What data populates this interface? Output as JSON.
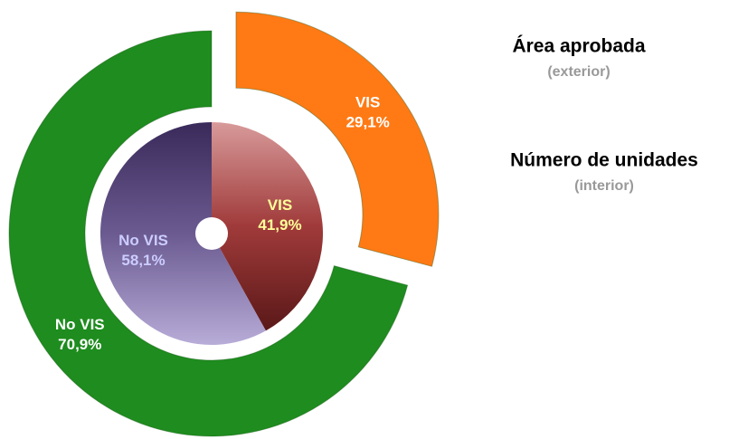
{
  "chart_data": {
    "type": "donut",
    "series": [
      {
        "name": "Área aprobada",
        "ring": "(exterior)",
        "categories": [
          "VIS",
          "No VIS"
        ],
        "values": [
          29.1,
          70.9
        ],
        "value_labels": [
          "29,1%",
          "70,9%"
        ],
        "colors": [
          "#ff7a14",
          "#1e8c1e"
        ],
        "label_color": "#ffffff"
      },
      {
        "name": "Número de unidades",
        "ring": "(interior)",
        "categories": [
          "VIS",
          "No VIS"
        ],
        "values": [
          41.9,
          58.1
        ],
        "value_labels": [
          "41,9%",
          "58,1%"
        ],
        "colors": [
          "#8a2b2b",
          "#5a4a80"
        ],
        "label_color": [
          "#ffff99",
          "#ccccff"
        ]
      }
    ]
  }
}
